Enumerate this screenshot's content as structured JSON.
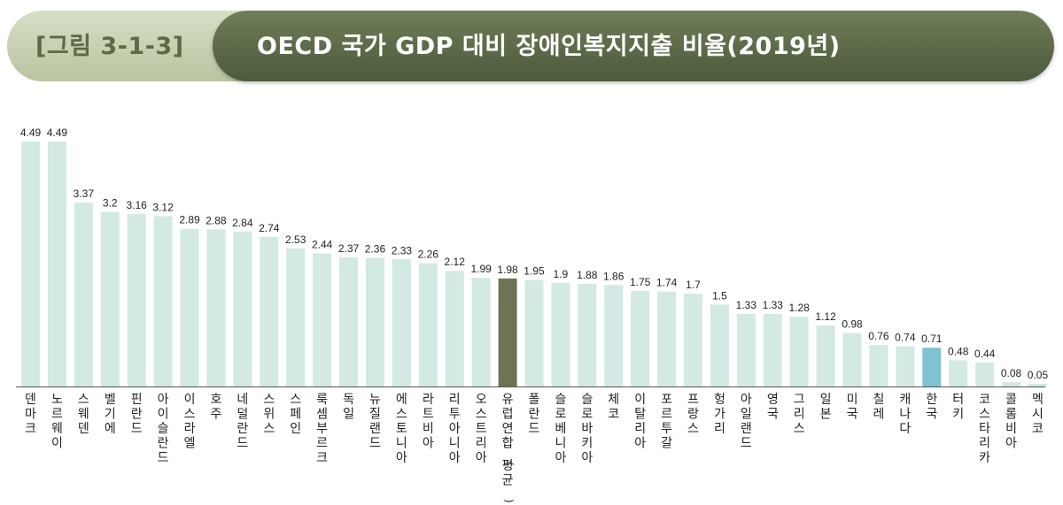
{
  "figure": {
    "label": "[그림 3-1-3]",
    "title": "OECD 국가 GDP 대비 장애인복지지출 비율(2019년)"
  },
  "colors": {
    "bar": "#d3e9e4",
    "bar_average": "#6c7452",
    "bar_korea": "#7ec3cf",
    "axis": "#555555"
  },
  "chart_data": {
    "type": "bar",
    "categories": [
      "덴마크",
      "노르웨이",
      "스웨덴",
      "벨기에",
      "핀란드",
      "아이슬란드",
      "이스라엘",
      "호주",
      "네덜란드",
      "스위스",
      "스페인",
      "룩셈부르크",
      "독일",
      "뉴질랜드",
      "에스토니아",
      "라트비아",
      "리투아니아",
      "오스트리아",
      "유럽연합(평균)",
      "폴란드",
      "슬로베니아",
      "슬로바키아",
      "체코",
      "이탈리아",
      "포르투갈",
      "프랑스",
      "헝가리",
      "아일랜드",
      "영국",
      "그리스",
      "일본",
      "미국",
      "칠레",
      "캐나다",
      "한국",
      "터키",
      "코스타리카",
      "콜롬비아",
      "멕시코"
    ],
    "values": [
      4.49,
      4.49,
      3.37,
      3.2,
      3.16,
      3.12,
      2.89,
      2.88,
      2.84,
      2.74,
      2.53,
      2.44,
      2.37,
      2.36,
      2.33,
      2.26,
      2.12,
      1.99,
      1.98,
      1.95,
      1.9,
      1.88,
      1.86,
      1.75,
      1.74,
      1.7,
      1.5,
      1.33,
      1.33,
      1.28,
      1.12,
      0.98,
      0.76,
      0.74,
      0.71,
      0.48,
      0.44,
      0.08,
      0.05
    ],
    "value_labels": [
      "4.49",
      "4.49",
      "3.37",
      "3.2",
      "3.16",
      "3.12",
      "2.89",
      "2.88",
      "2.84",
      "2.74",
      "2.53",
      "2.44",
      "2.37",
      "2.36",
      "2.33",
      "2.26",
      "2.12",
      "1.99",
      "1.98",
      "1.95",
      "1.9",
      "1.88",
      "1.86",
      "1.75",
      "1.74",
      "1.7",
      "1.5",
      "1.33",
      "1.33",
      "1.28",
      "1.12",
      "0.98",
      "0.76",
      "0.74",
      "0.71",
      "0.48",
      "0.44",
      "0.08",
      "0.05"
    ],
    "highlight_average": "유럽연합(평균)",
    "highlight_country": "한국",
    "ylim": [
      0,
      4.49
    ],
    "grid": false,
    "title": "",
    "xlabel": "",
    "ylabel": ""
  }
}
